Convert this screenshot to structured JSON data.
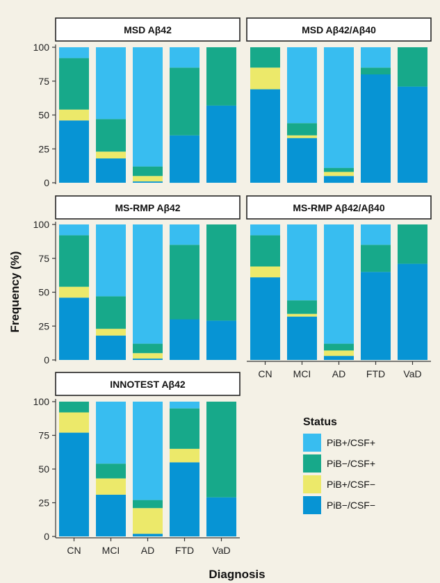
{
  "chart_data": {
    "type": "bar",
    "stacked": true,
    "xlabel": "Diagnosis",
    "ylabel": "Frequency (%)",
    "ylim": [
      0,
      100
    ],
    "yticks": [
      0,
      25,
      50,
      75,
      100
    ],
    "categories": [
      "CN",
      "MCI",
      "AD",
      "FTD",
      "VaD"
    ],
    "legend": {
      "title": "Status",
      "placement": "right",
      "entries": [
        {
          "name": "PiB+/CSF+",
          "color": "#38bdf0"
        },
        {
          "name": "PiB−/CSF+",
          "color": "#17a98a"
        },
        {
          "name": "PiB+/CSF−",
          "color": "#ece96a"
        },
        {
          "name": "PiB−/CSF−",
          "color": "#0794d4"
        }
      ]
    },
    "series_stack_order": [
      "PiB−/CSF−",
      "PiB+/CSF−",
      "PiB−/CSF+",
      "PiB+/CSF+"
    ],
    "panels": [
      {
        "title": "MSD Aβ42",
        "series": [
          {
            "name": "PiB−/CSF−",
            "values": [
              46,
              18,
              1,
              35,
              57
            ]
          },
          {
            "name": "PiB+/CSF−",
            "values": [
              8,
              5,
              4,
              0,
              0
            ]
          },
          {
            "name": "PiB−/CSF+",
            "values": [
              38,
              24,
              7,
              50,
              43
            ]
          },
          {
            "name": "PiB+/CSF+",
            "values": [
              8,
              53,
              88,
              15,
              0
            ]
          }
        ]
      },
      {
        "title": "MSD Aβ42/Aβ40",
        "series": [
          {
            "name": "PiB−/CSF−",
            "values": [
              69,
              33,
              5,
              80,
              71
            ]
          },
          {
            "name": "PiB+/CSF−",
            "values": [
              16,
              2,
              3,
              0,
              0
            ]
          },
          {
            "name": "PiB−/CSF+",
            "values": [
              15,
              9,
              3,
              5,
              29
            ]
          },
          {
            "name": "PiB+/CSF+",
            "values": [
              0,
              56,
              89,
              15,
              0
            ]
          }
        ]
      },
      {
        "title": "MS-RMP Aβ42",
        "series": [
          {
            "name": "PiB−/CSF−",
            "values": [
              46,
              18,
              1,
              30,
              29
            ]
          },
          {
            "name": "PiB+/CSF−",
            "values": [
              8,
              5,
              4,
              0,
              0
            ]
          },
          {
            "name": "PiB−/CSF+",
            "values": [
              38,
              24,
              7,
              55,
              71
            ]
          },
          {
            "name": "PiB+/CSF+",
            "values": [
              8,
              53,
              88,
              15,
              0
            ]
          }
        ]
      },
      {
        "title": "MS-RMP Aβ42/Aβ40",
        "series": [
          {
            "name": "PiB−/CSF−",
            "values": [
              61,
              32,
              3,
              65,
              71
            ]
          },
          {
            "name": "PiB+/CSF−",
            "values": [
              8,
              2,
              4,
              0,
              0
            ]
          },
          {
            "name": "PiB−/CSF+",
            "values": [
              23,
              10,
              5,
              20,
              29
            ]
          },
          {
            "name": "PiB+/CSF+",
            "values": [
              8,
              56,
              88,
              15,
              0
            ]
          }
        ]
      },
      {
        "title": "INNOTEST Aβ42",
        "series": [
          {
            "name": "PiB−/CSF−",
            "values": [
              77,
              31,
              2,
              55,
              29
            ]
          },
          {
            "name": "PiB+/CSF−",
            "values": [
              15,
              12,
              19,
              10,
              0
            ]
          },
          {
            "name": "PiB−/CSF+",
            "values": [
              8,
              11,
              6,
              30,
              71
            ]
          },
          {
            "name": "PiB+/CSF+",
            "values": [
              0,
              46,
              73,
              5,
              0
            ]
          }
        ]
      }
    ]
  }
}
